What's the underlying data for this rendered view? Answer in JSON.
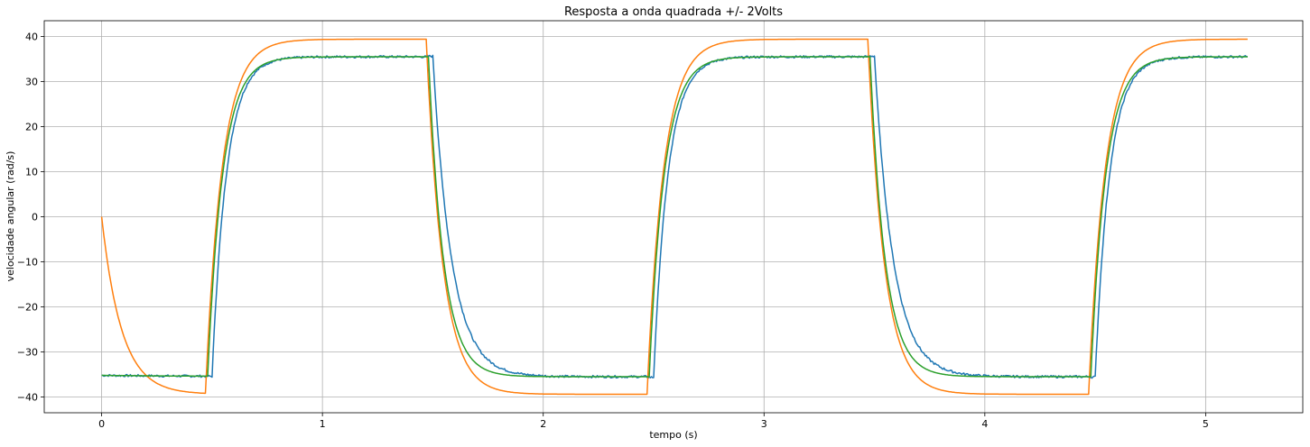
{
  "chart_data": {
    "type": "line",
    "title": "Resposta a onda quadrada  +/- 2Volts",
    "xlabel": "tempo (s)",
    "ylabel": "velocidade angular (rad/s)",
    "xlim": [
      -0.26,
      5.44
    ],
    "ylim": [
      -43.5,
      43.5
    ],
    "xticks": [
      0,
      1,
      2,
      3,
      4,
      5
    ],
    "yticks": [
      -40,
      -30,
      -20,
      -10,
      0,
      10,
      20,
      30,
      40
    ],
    "grid": true,
    "square_wave": {
      "period": 2.0,
      "first_edge": 0.47,
      "t_end": 5.19,
      "colors": [
        "#1f77b4",
        "#ff7f0e",
        "#2ca02c"
      ]
    },
    "series": [
      {
        "color": "#1f77b4",
        "t0": 0.0,
        "y0": -35.2,
        "steady_high": 35.5,
        "steady_low": -35.5,
        "tau_rise": 0.065,
        "tau_fall": 0.085,
        "delay": 0.03,
        "noise": 0.25
      },
      {
        "color": "#ff7f0e",
        "t0": 0.0,
        "y0": 0.0,
        "steady_high": 39.4,
        "steady_low": -39.4,
        "tau_rise": 0.075,
        "tau_fall": 0.075,
        "delay": 0.0,
        "noise": 0.0
      },
      {
        "color": "#2ca02c",
        "t0": 0.0,
        "y0": -35.2,
        "steady_high": 35.5,
        "steady_low": -35.5,
        "tau_rise": 0.068,
        "tau_fall": 0.068,
        "delay": 0.01,
        "noise": 0.0
      }
    ]
  }
}
